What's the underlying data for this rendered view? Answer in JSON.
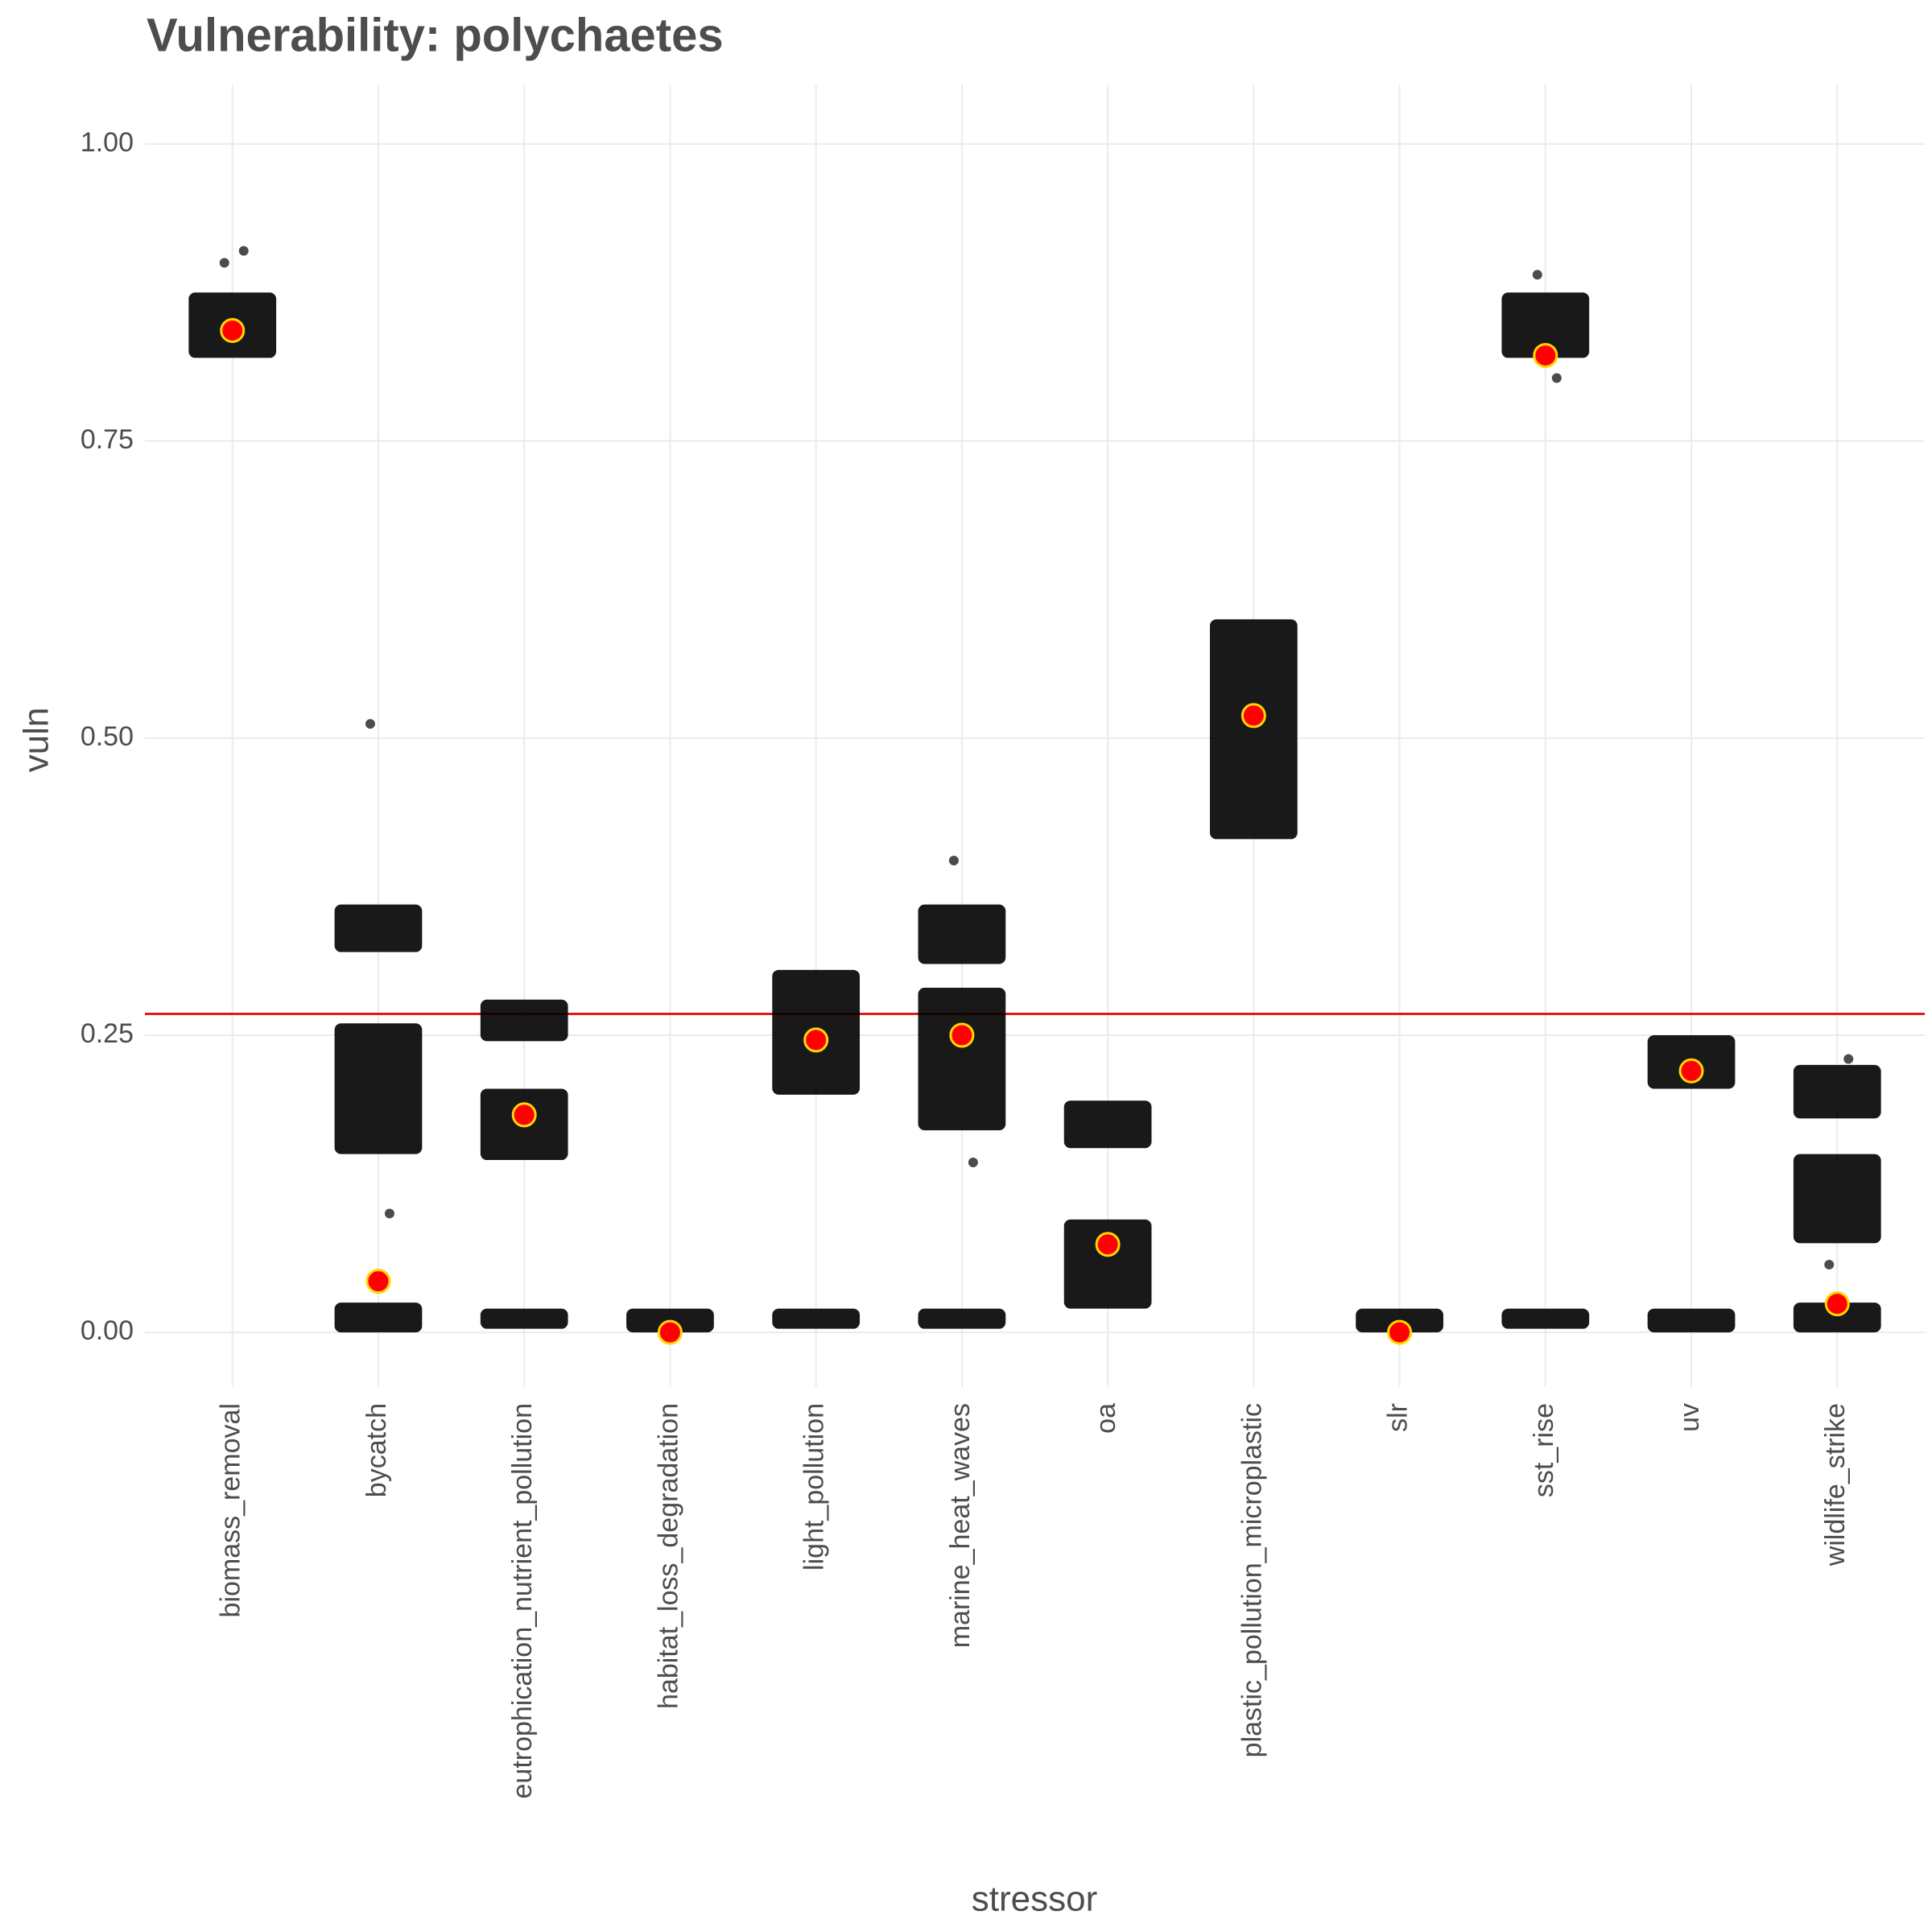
{
  "chart_data": {
    "type": "strip",
    "title": "Vulnerability: polychaetes",
    "x_label": "stressor",
    "y_label": "vuln",
    "categories": [
      "biomass_removal",
      "bycatch",
      "eutrophication_nutrient_pollution",
      "habitat_loss_degradation",
      "light_pollution",
      "marine_heat_waves",
      "oa",
      "plastic_pollution_microplastic",
      "slr",
      "sst_rise",
      "uv",
      "wildlife_strike"
    ],
    "means": [
      0.843,
      0.043,
      0.183,
      0.0,
      0.246,
      0.25,
      0.074,
      0.519,
      0.0,
      0.822,
      0.22,
      0.024
    ],
    "clusters": [
      [
        [
          0.82,
          0.875
        ]
      ],
      [
        [
          0.32,
          0.36
        ],
        [
          0.15,
          0.26
        ],
        [
          0.0,
          0.025
        ]
      ],
      [
        [
          0.245,
          0.28
        ],
        [
          0.145,
          0.205
        ],
        [
          0.003,
          0.02
        ]
      ],
      [
        [
          0.0,
          0.02
        ]
      ],
      [
        [
          0.2,
          0.305
        ],
        [
          0.003,
          0.02
        ]
      ],
      [
        [
          0.31,
          0.36
        ],
        [
          0.17,
          0.29
        ],
        [
          0.003,
          0.02
        ]
      ],
      [
        [
          0.155,
          0.195
        ],
        [
          0.02,
          0.095
        ]
      ],
      [
        [
          0.415,
          0.6
        ]
      ],
      [
        [
          0.0,
          0.02
        ]
      ],
      [
        [
          0.82,
          0.875
        ],
        [
          0.003,
          0.02
        ]
      ],
      [
        [
          0.205,
          0.25
        ],
        [
          0.0,
          0.02
        ]
      ],
      [
        [
          0.18,
          0.225
        ],
        [
          0.075,
          0.15
        ],
        [
          0.0,
          0.025
        ]
      ]
    ],
    "outliers": [
      [
        0.9,
        0.91
      ],
      [
        0.512,
        0.1
      ],
      [],
      [],
      [],
      [
        0.397,
        0.143
      ],
      [],
      [],
      [],
      [
        0.89,
        0.803
      ],
      [],
      [
        0.057,
        0.23
      ]
    ],
    "reference_line": 0.268,
    "point_color": "#000000",
    "mean_color": "#ff0000",
    "mean_outline": "#ffd700",
    "line_color": "#e31a1c",
    "ylim": [
      -0.046,
      1.05
    ],
    "yticks": [
      {
        "value": 0,
        "label": "0.00"
      },
      0.25,
      {
        "value": 0.5,
        "label": "0.50"
      },
      0.75,
      {
        "value": 1,
        "label": "1.00"
      }
    ],
    "grid": true
  }
}
